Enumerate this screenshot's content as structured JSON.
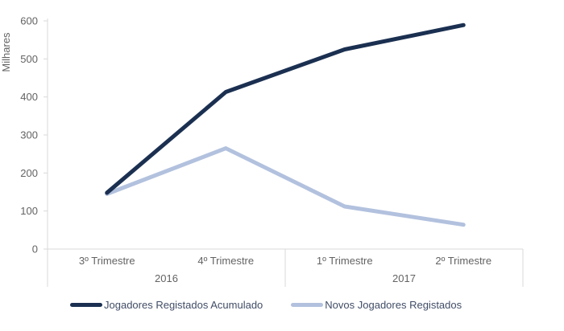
{
  "chart_data": {
    "type": "line",
    "title": "",
    "ylabel": "Milhares",
    "xlabel": "",
    "categories": [
      "3º Trimestre",
      "4º Trimestre",
      "1º Trimestre",
      "2º Trimestre"
    ],
    "category_groups": [
      {
        "label": "2016",
        "span": 2
      },
      {
        "label": "2017",
        "span": 2
      }
    ],
    "y_ticks": [
      0,
      100,
      200,
      300,
      400,
      500,
      600
    ],
    "ylim": [
      0,
      600
    ],
    "grid": false,
    "legend_position": "bottom",
    "series": [
      {
        "name": "Jogadores Registados Acumulado",
        "values": [
          148,
          413,
          525,
          589
        ],
        "color": "#1b3051"
      },
      {
        "name": "Novos Jogadores Registados",
        "values": [
          145,
          265,
          112,
          64
        ],
        "color": "#b2c1de"
      }
    ]
  },
  "colors": {
    "background": "#ffffff",
    "axis_line": "#d9d9d9",
    "tick_label": "#636363",
    "legend_text": "#414d66"
  }
}
